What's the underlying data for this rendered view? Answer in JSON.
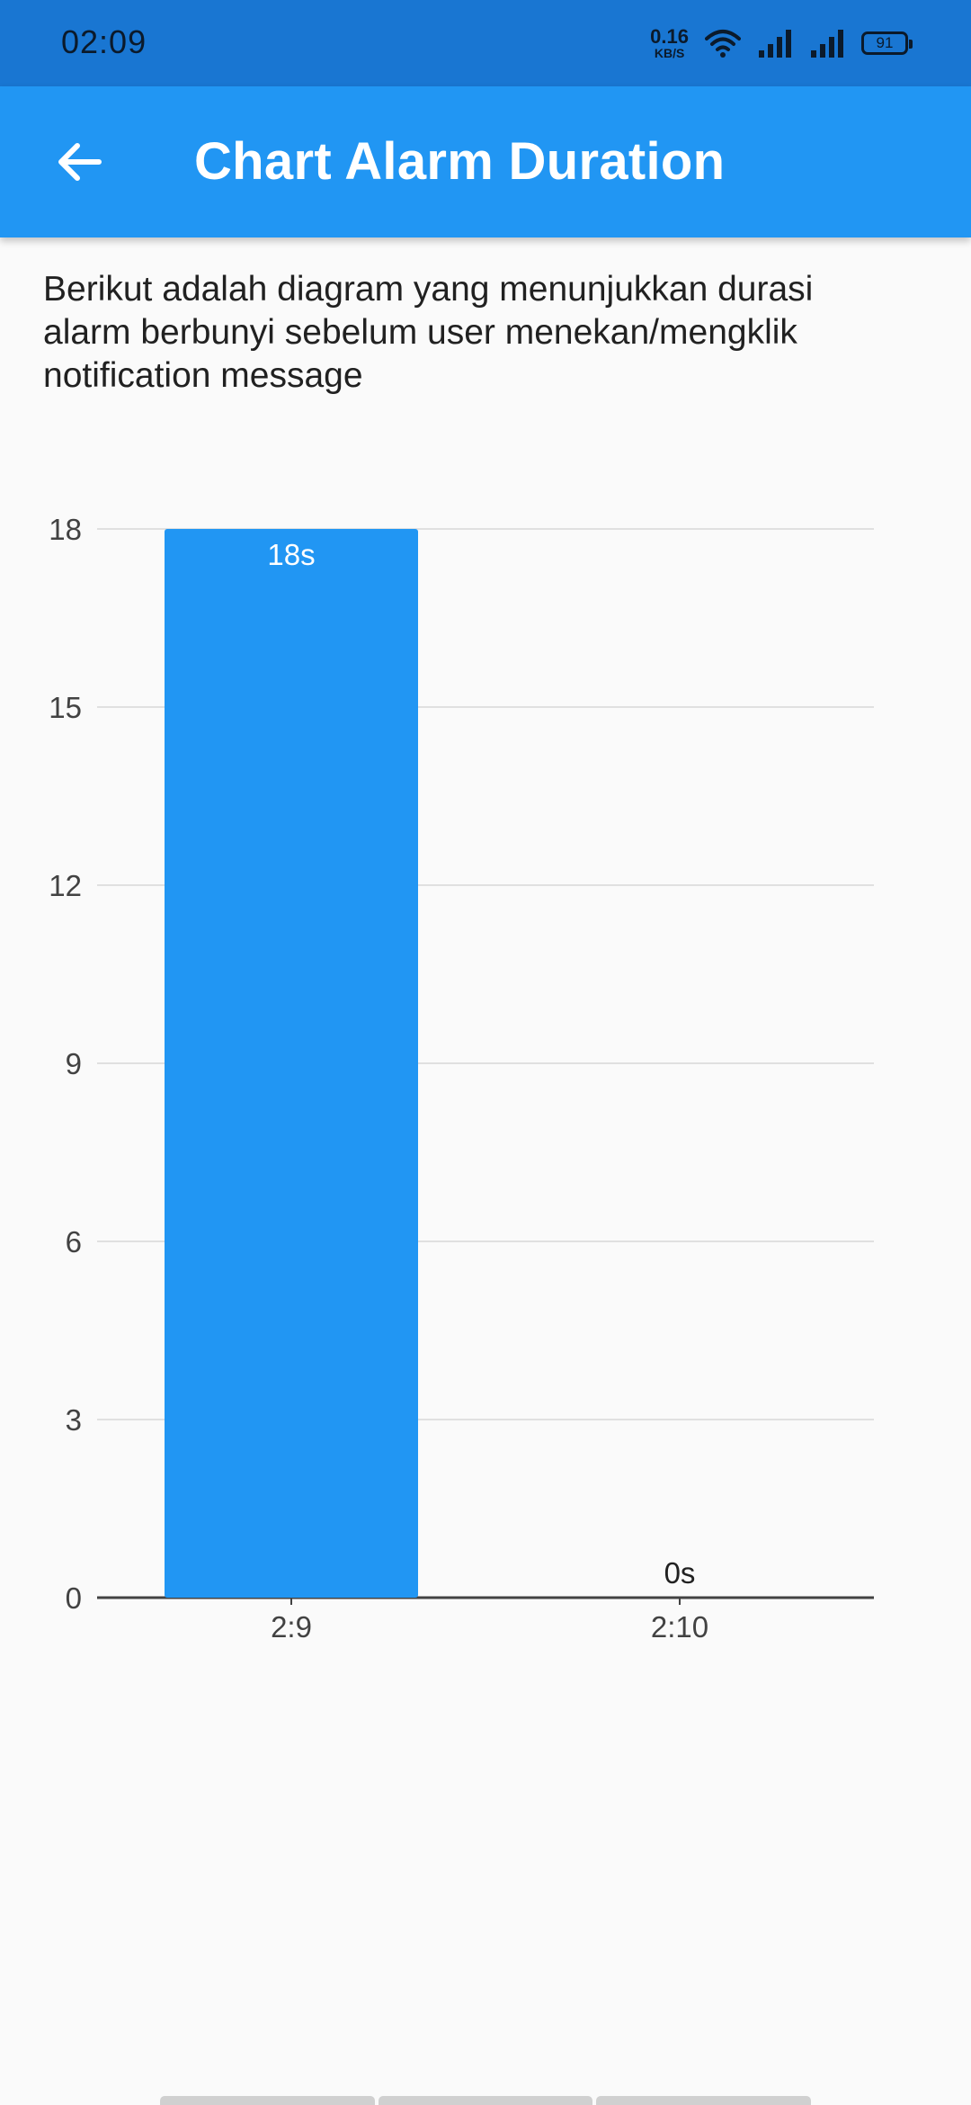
{
  "status_bar": {
    "time": "02:09",
    "net_speed_value": "0.16",
    "net_speed_unit": "KB/S",
    "battery": "91",
    "icons": [
      "wifi-icon",
      "signal-icon",
      "signal-icon",
      "battery-icon"
    ]
  },
  "app_bar": {
    "title": "Chart Alarm Duration",
    "back_icon": "arrow-back-icon",
    "background": "#2196f3"
  },
  "description": "Berikut adalah diagram yang menunjukkan durasi alarm berbunyi sebelum user menekan/mengklik notification message",
  "chart_data": {
    "type": "bar",
    "categories": [
      "2:9",
      "2:10"
    ],
    "values": [
      18,
      0
    ],
    "data_labels": [
      "18s",
      "0s"
    ],
    "ylim": [
      0,
      18
    ],
    "yticks": [
      0,
      3,
      6,
      9,
      12,
      15,
      18
    ],
    "grid": true,
    "bar_color": "#2196f3"
  }
}
